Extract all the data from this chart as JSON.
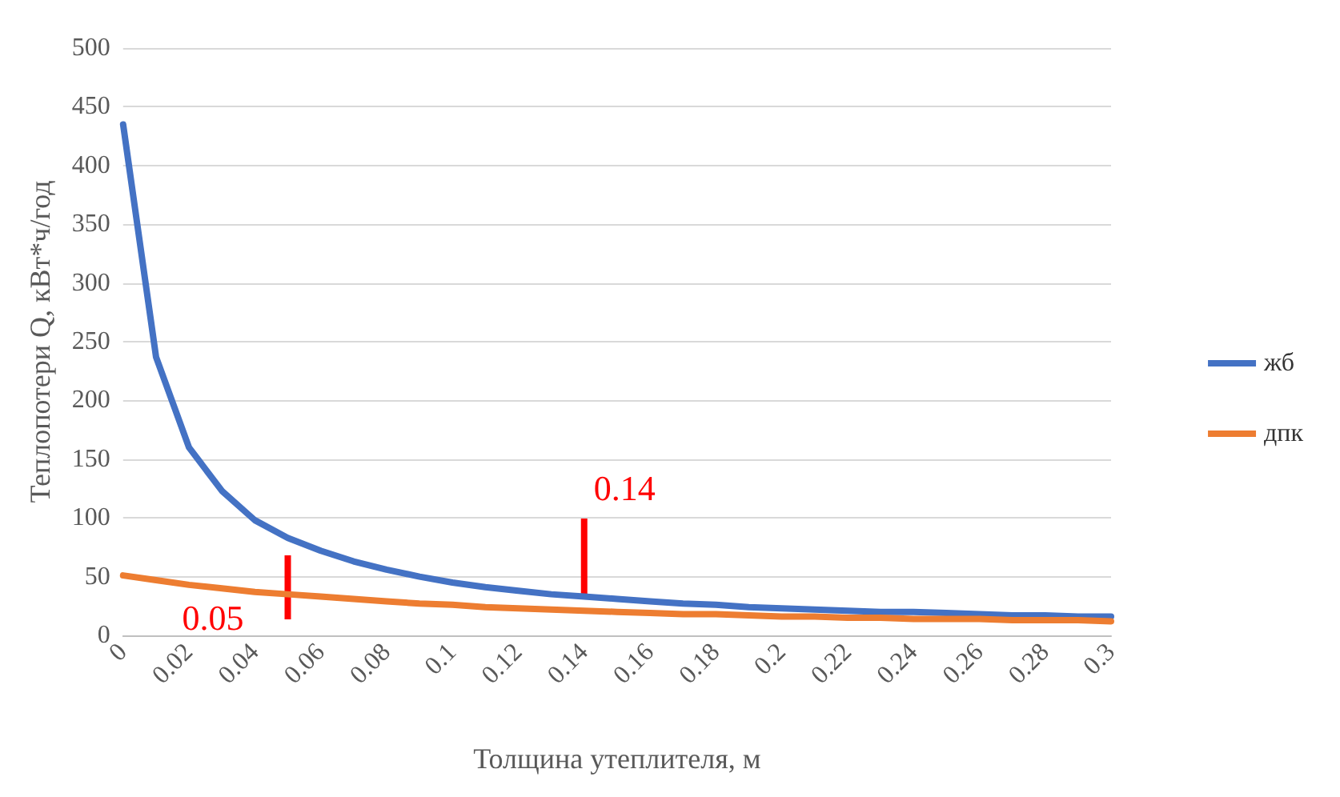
{
  "chart_data": {
    "type": "line",
    "xlabel": "Толщина утеплителя, м",
    "ylabel": "Теплопотери Q, кВт*ч/год",
    "x": [
      0,
      0.01,
      0.02,
      0.03,
      0.04,
      0.05,
      0.06,
      0.07,
      0.08,
      0.09,
      0.1,
      0.11,
      0.12,
      0.13,
      0.14,
      0.15,
      0.16,
      0.17,
      0.18,
      0.19,
      0.2,
      0.21,
      0.22,
      0.23,
      0.24,
      0.25,
      0.26,
      0.27,
      0.28,
      0.29,
      0.3
    ],
    "series": [
      {
        "name": "жб",
        "color": "#4472c4",
        "values": [
          435,
          237,
          160,
          123,
          98,
          83,
          72,
          63,
          56,
          50,
          45,
          41,
          38,
          35,
          33,
          31,
          29,
          27,
          26,
          24,
          23,
          22,
          21,
          20,
          20,
          19,
          18,
          17,
          17,
          16,
          16
        ]
      },
      {
        "name": "дпк",
        "color": "#ed7d31",
        "values": [
          51,
          47,
          43,
          40,
          37,
          35,
          33,
          31,
          29,
          27,
          26,
          24,
          23,
          22,
          21,
          20,
          19,
          18,
          18,
          17,
          16,
          16,
          15,
          15,
          14,
          14,
          14,
          13,
          13,
          13,
          12
        ]
      }
    ],
    "xlim": [
      0,
      0.3
    ],
    "xticks": [
      0,
      0.02,
      0.04,
      0.06,
      0.08,
      0.1,
      0.12,
      0.14,
      0.16,
      0.18,
      0.2,
      0.22,
      0.24,
      0.26,
      0.28,
      0.3
    ],
    "ylim": [
      0,
      500
    ],
    "yticks": [
      0,
      50,
      100,
      150,
      200,
      250,
      300,
      350,
      400,
      450,
      500
    ],
    "grid": "y",
    "legend": "right",
    "marker": "none",
    "line_style": "solid",
    "ref_lines": [
      {
        "axis": "x",
        "value": 0.05,
        "label": "0.05",
        "color": "#ff0000"
      },
      {
        "axis": "x",
        "value": 0.14,
        "label": "0.14",
        "color": "#ff0000"
      }
    ]
  }
}
